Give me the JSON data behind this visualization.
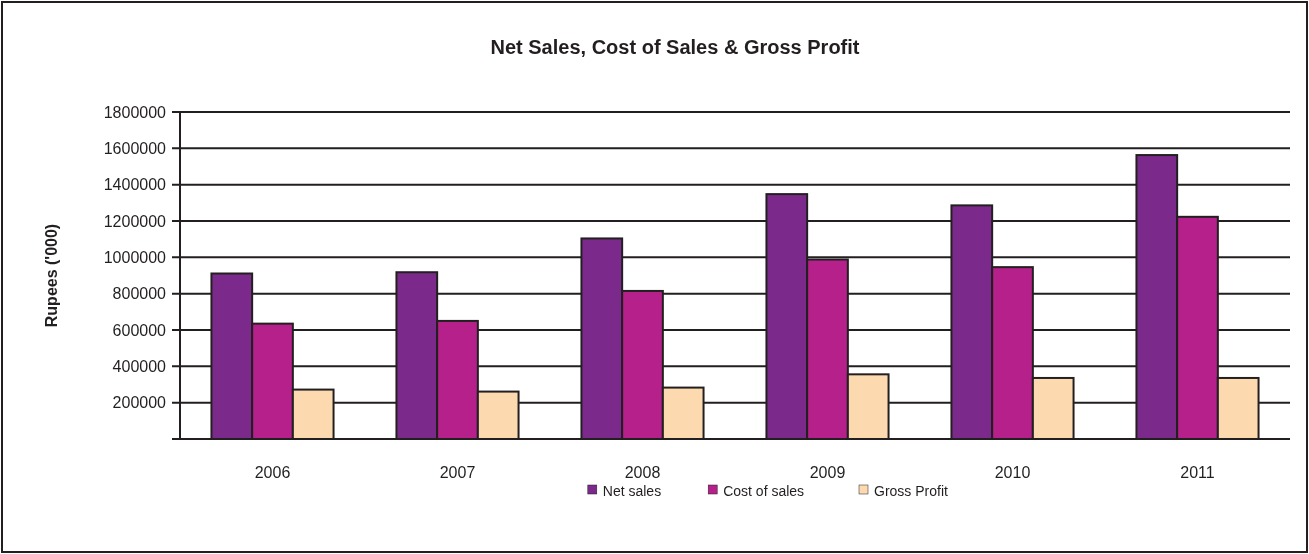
{
  "chart_data": {
    "type": "bar",
    "title": "Net Sales, Cost of Sales & Gross Profit",
    "ylabel": "Rupees ('000)",
    "categories": [
      "2006",
      "2007",
      "2008",
      "2009",
      "2010",
      "2011"
    ],
    "series": [
      {
        "name": "Net sales",
        "color": "#7b2a8c",
        "values": [
          911000,
          918000,
          1104000,
          1348000,
          1286000,
          1563000
        ]
      },
      {
        "name": "Cost of sales",
        "color": "#b5208a",
        "values": [
          635000,
          650000,
          815000,
          988000,
          946000,
          1223000
        ]
      },
      {
        "name": "Gross Profit",
        "color": "#fdd9b0",
        "values": [
          272000,
          261000,
          283000,
          356000,
          336000,
          336000
        ]
      }
    ],
    "ylim": [
      0,
      1800000
    ],
    "yticks": [
      {
        "value": 0,
        "label": null
      },
      200000,
      400000,
      600000,
      800000,
      1000000,
      1200000,
      1400000,
      1600000,
      1800000
    ],
    "grid": "y",
    "legend": "bottom"
  }
}
